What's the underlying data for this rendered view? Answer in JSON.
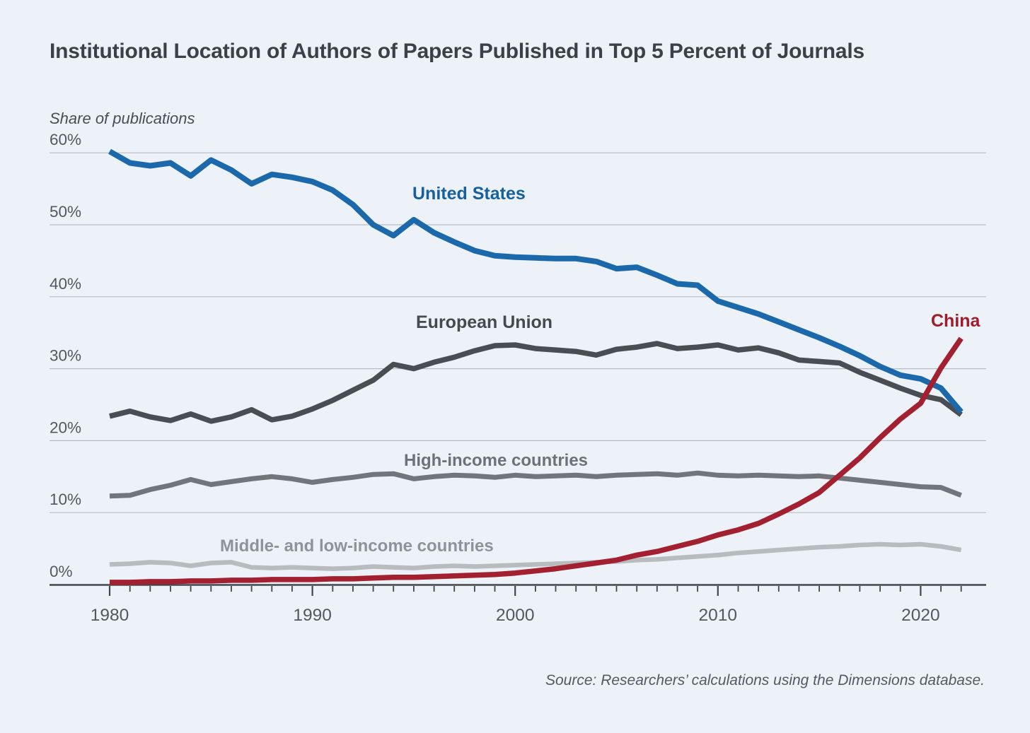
{
  "title": "Institutional Location of Authors of Papers Published in Top 5 Percent of Journals",
  "y_axis_title": "Share of publications",
  "source_note": "Source: Researchers’ calculations using the Dimensions database.",
  "colors": {
    "background": "#edf2f8",
    "gridline": "#b7bdc7",
    "axis": "#43474b",
    "tick_label": "#54585d",
    "title_text": "#3d4145"
  },
  "chart_data": {
    "type": "line",
    "title": "Institutional Location of Authors of Papers Published in Top 5 Percent of Journals",
    "ylabel": "Share of publications",
    "xlabel": "",
    "grid": "horizontal",
    "legend_position": "inline-labels",
    "xlim": [
      1980,
      2022
    ],
    "ylim": [
      0,
      62
    ],
    "x_ticks_labeled": [
      {
        "v": 1980,
        "label": "1980"
      },
      {
        "v": 1990,
        "label": "1990"
      },
      {
        "v": 2000,
        "label": "2000"
      },
      {
        "v": 2010,
        "label": "2010"
      },
      {
        "v": 2020,
        "label": "2020"
      }
    ],
    "y_ticks": [
      {
        "v": 0,
        "label": "0%"
      },
      {
        "v": 10,
        "label": "10%"
      },
      {
        "v": 20,
        "label": "20%"
      },
      {
        "v": 30,
        "label": "30%"
      },
      {
        "v": 40,
        "label": "40%"
      },
      {
        "v": 50,
        "label": "50%"
      },
      {
        "v": 60,
        "label": "60%"
      }
    ],
    "x": [
      1980,
      1981,
      1982,
      1983,
      1984,
      1985,
      1986,
      1987,
      1988,
      1989,
      1990,
      1991,
      1992,
      1993,
      1994,
      1995,
      1996,
      1997,
      1998,
      1999,
      2000,
      2001,
      2002,
      2003,
      2004,
      2005,
      2006,
      2007,
      2008,
      2009,
      2010,
      2011,
      2012,
      2013,
      2014,
      2015,
      2016,
      2017,
      2018,
      2019,
      2020,
      2021,
      2022
    ],
    "series": [
      {
        "name": "Middle- and low-income countries",
        "color": "#b9bcbf",
        "label_color": "#8f9397",
        "line_width": 6.5,
        "values": [
          2.8,
          2.9,
          3.1,
          3.0,
          2.6,
          3.0,
          3.1,
          2.4,
          2.3,
          2.4,
          2.3,
          2.2,
          2.3,
          2.5,
          2.4,
          2.3,
          2.5,
          2.6,
          2.5,
          2.6,
          2.7,
          2.8,
          2.9,
          3.0,
          3.1,
          3.2,
          3.4,
          3.5,
          3.7,
          3.9,
          4.1,
          4.4,
          4.6,
          4.8,
          5.0,
          5.2,
          5.3,
          5.5,
          5.6,
          5.5,
          5.6,
          5.3,
          4.8
        ]
      },
      {
        "name": "High-income countries",
        "color": "#72767b",
        "label_color": "#6e7277",
        "line_width": 7,
        "values": [
          12.3,
          12.4,
          13.2,
          13.8,
          14.6,
          13.9,
          14.3,
          14.7,
          15.0,
          14.7,
          14.2,
          14.6,
          14.9,
          15.3,
          15.4,
          14.7,
          15.0,
          15.2,
          15.1,
          14.9,
          15.2,
          15.0,
          15.1,
          15.2,
          15.0,
          15.2,
          15.3,
          15.4,
          15.2,
          15.5,
          15.2,
          15.1,
          15.2,
          15.1,
          15.0,
          15.1,
          14.8,
          14.5,
          14.2,
          13.9,
          13.6,
          13.5,
          12.4
        ]
      },
      {
        "name": "European Union",
        "color": "#4a4e53",
        "label_color": "#46494e",
        "line_width": 7.5,
        "values": [
          23.4,
          24.1,
          23.3,
          22.8,
          23.7,
          22.7,
          23.3,
          24.3,
          22.9,
          23.4,
          24.4,
          25.6,
          27.0,
          28.4,
          30.6,
          30.0,
          30.9,
          31.6,
          32.5,
          33.2,
          33.3,
          32.8,
          32.6,
          32.4,
          31.9,
          32.7,
          33.0,
          33.5,
          32.8,
          33.0,
          33.3,
          32.6,
          32.9,
          32.2,
          31.2,
          31.0,
          30.8,
          29.5,
          28.4,
          27.3,
          26.3,
          25.7,
          23.6
        ]
      },
      {
        "name": "United States",
        "color": "#1b69ab",
        "label_color": "#175f9f",
        "line_width": 8,
        "values": [
          60.2,
          58.6,
          58.2,
          58.6,
          56.8,
          59.0,
          57.6,
          55.7,
          57.0,
          56.6,
          56.0,
          54.8,
          52.8,
          50.0,
          48.5,
          50.7,
          48.9,
          47.6,
          46.4,
          45.7,
          45.5,
          45.4,
          45.3,
          45.3,
          44.9,
          43.9,
          44.1,
          43.0,
          41.8,
          41.6,
          39.4,
          38.5,
          37.6,
          36.5,
          35.4,
          34.3,
          33.1,
          31.8,
          30.3,
          29.1,
          28.6,
          27.3,
          24.0
        ]
      },
      {
        "name": "China",
        "color": "#a32031",
        "label_color": "#9e1c2c",
        "line_width": 7.5,
        "values": [
          0.3,
          0.3,
          0.4,
          0.4,
          0.5,
          0.5,
          0.6,
          0.6,
          0.7,
          0.7,
          0.7,
          0.8,
          0.8,
          0.9,
          1.0,
          1.0,
          1.1,
          1.2,
          1.3,
          1.4,
          1.6,
          1.9,
          2.2,
          2.6,
          3.0,
          3.4,
          4.1,
          4.6,
          5.3,
          6.0,
          6.9,
          7.6,
          8.5,
          9.8,
          11.2,
          12.8,
          15.2,
          17.6,
          20.4,
          23.0,
          25.2,
          30.1,
          34.2
        ]
      }
    ]
  }
}
